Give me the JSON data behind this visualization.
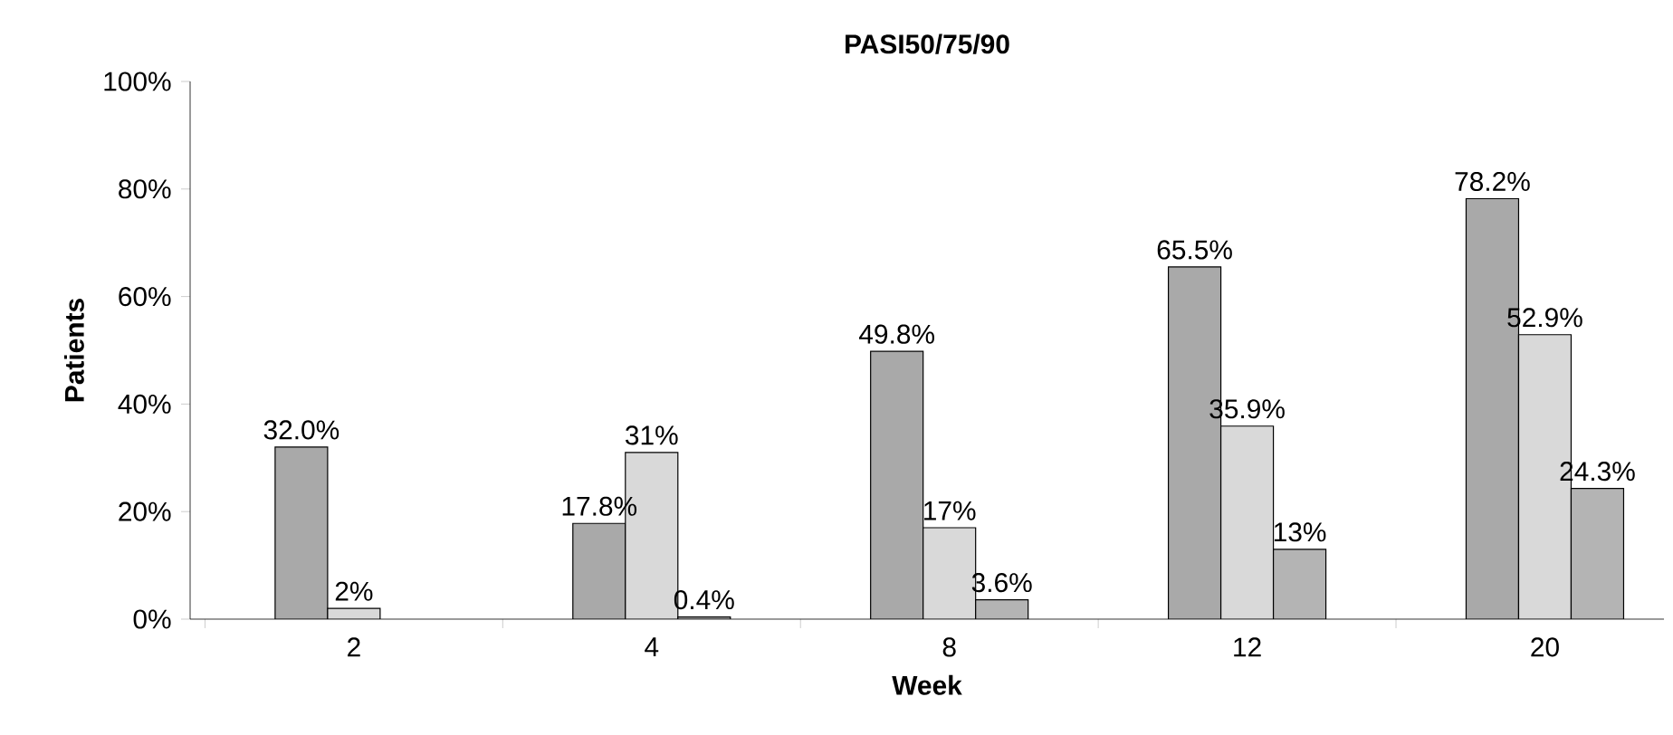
{
  "chart_data": {
    "type": "bar",
    "title": "PASI50/75/90",
    "xlabel": "Week",
    "ylabel": "Patients",
    "categories": [
      "2",
      "4",
      "8",
      "12",
      "20"
    ],
    "series": [
      {
        "color": "#a9a9a9",
        "values": [
          32.0,
          17.8,
          49.8,
          65.5,
          78.2
        ],
        "value_labels": [
          "32.0%",
          "17.8%",
          "49.8%",
          "65.5%",
          "78.2%"
        ]
      },
      {
        "color": "#d9d9d9",
        "values": [
          2,
          31,
          17,
          35.9,
          52.9
        ],
        "value_labels": [
          "2%",
          "31%",
          "17%",
          "35.9%",
          "52.9%"
        ]
      },
      {
        "color": "#b4b4b4",
        "values": [
          null,
          0.4,
          3.6,
          13,
          24.3
        ],
        "value_labels": [
          null,
          "0.4%",
          "3.6%",
          "13%",
          "24.3%"
        ]
      }
    ],
    "ylim": [
      0,
      100
    ],
    "yticks": [
      {
        "value": 0,
        "label": "0%"
      },
      {
        "value": 20,
        "label": "20%"
      },
      {
        "value": 40,
        "label": "40%"
      },
      {
        "value": 60,
        "label": "60%"
      },
      {
        "value": 80,
        "label": "80%"
      },
      {
        "value": 100,
        "label": "100%"
      }
    ],
    "grid": false
  }
}
